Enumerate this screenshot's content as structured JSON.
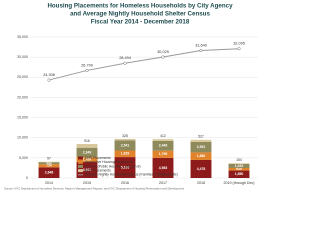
{
  "chart_data": {
    "type": "bar",
    "stacked": true,
    "title": [
      "Housing Placements for Homeless Households by City Agency",
      "and Average Nightly Household Shelter Census",
      "Fiscal Year 2014 - December 2018"
    ],
    "categories": [
      "2014",
      "2015",
      "2016",
      "2017",
      "2018",
      "2019 (through Dec)"
    ],
    "ylim": [
      0,
      35000
    ],
    "yticks": [
      0,
      {
        "value": 5000,
        "label": "5,000"
      },
      {
        "value": 10000,
        "label": "10,000"
      },
      {
        "value": 15000,
        "label": "15,000"
      },
      {
        "value": 20000,
        "label": "20,000"
      },
      {
        "value": 25000,
        "label": "25,000"
      },
      {
        "value": 30000,
        "label": "30,000"
      },
      {
        "value": 35000,
        "label": "35,000"
      }
    ],
    "grid": true,
    "series": [
      {
        "name": "DHS Placements",
        "color": "#8e1b1b",
        "values": [
          2648,
          3961,
          5193,
          4983,
          4478,
          1850
        ],
        "value_labels": [
          "2,648",
          "3,961",
          "5,193",
          "4,983",
          "4,478",
          "1,850"
        ]
      },
      {
        "name": "Supportive Housing Placements",
        "color": "#e0832a",
        "values": [
          754,
          1208,
          1629,
          1799,
          1880,
          635
        ],
        "value_labels": [
          "754",
          "1,208",
          "1,629",
          "1,799",
          "1,880",
          "635"
        ]
      },
      {
        "name": "NYCHA (Public Housing + Section 8)",
        "color": "#8f8a5c",
        "values": [
          531,
          2349,
          2541,
          2449,
          2591,
          1033
        ],
        "value_labels": [
          "531",
          "2,349",
          "2,541",
          "2,449",
          "2,591",
          "1,033"
        ]
      },
      {
        "name": "HPD Placements",
        "color": "#d8c79a",
        "values": [
          97,
          916,
          328,
          412,
          527,
          154
        ]
      },
      {
        "name": "Average Nightly Household Census (Families + Single Adults)",
        "color": "#9a9a9a",
        "type": "line",
        "values": [
          24308,
          26700,
          28494,
          30029,
          31640,
          32095
        ],
        "value_labels": [
          "24,308",
          "26,700",
          "28,494",
          "30,029",
          "31,640",
          "32,095"
        ]
      }
    ],
    "source": "Source: NYC Department of Homeless Services, Mayor's Management Reports, and NYC Department of Housing Preservation and Development"
  }
}
